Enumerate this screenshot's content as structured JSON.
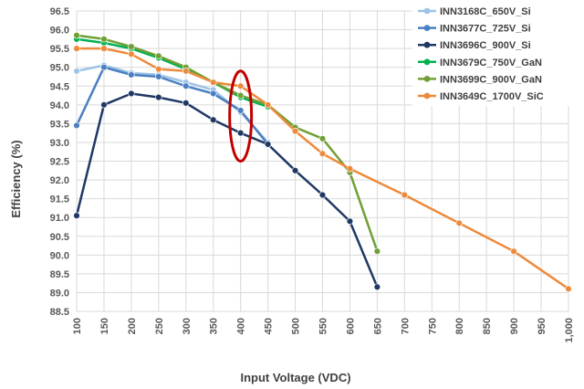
{
  "chart_data": {
    "type": "line",
    "xlabel": "Input Voltage (VDC)",
    "ylabel": "Efficiency (%)",
    "xlim": [
      100,
      1000
    ],
    "ylim": [
      88.5,
      96.5
    ],
    "x_ticks": [
      "100",
      "150",
      "200",
      "250",
      "300",
      "350",
      "400",
      "450",
      "500",
      "550",
      "600",
      "650",
      "700",
      "750",
      "800",
      "850",
      "900",
      "950",
      "1,000"
    ],
    "x_tick_values": [
      100,
      150,
      200,
      250,
      300,
      350,
      400,
      450,
      500,
      550,
      600,
      650,
      700,
      750,
      800,
      850,
      900,
      950,
      1000
    ],
    "y_ticks": [
      "96.5",
      "96.0",
      "95.5",
      "95.0",
      "94.5",
      "94.0",
      "93.5",
      "93.0",
      "92.5",
      "92.0",
      "91.5",
      "91.0",
      "90.5",
      "90.0",
      "89.5",
      "89.0",
      "88.5"
    ],
    "y_tick_values": [
      96.5,
      96.0,
      95.5,
      95.0,
      94.5,
      94.0,
      93.5,
      93.0,
      92.5,
      92.0,
      91.5,
      91.0,
      90.5,
      90.0,
      89.5,
      89.0,
      88.5
    ],
    "grid": true,
    "legend_position": "right",
    "series": [
      {
        "name": "INN3168C_650V_Si",
        "color": "#9dc3e6",
        "x": [
          100,
          150,
          200,
          250,
          300,
          350,
          400,
          450
        ],
        "y": [
          94.9,
          95.05,
          94.85,
          94.8,
          94.6,
          94.4,
          93.8,
          93.0
        ]
      },
      {
        "name": "INN3677C_725V_Si",
        "color": "#4a7fc1",
        "x": [
          100,
          150,
          200,
          250,
          300,
          350,
          400,
          450
        ],
        "y": [
          93.45,
          95.0,
          94.8,
          94.75,
          94.5,
          94.3,
          93.85,
          92.95
        ]
      },
      {
        "name": "INN3696C_900V_Si",
        "color": "#1f3864",
        "x": [
          100,
          150,
          200,
          250,
          300,
          350,
          400,
          450,
          500,
          550,
          600,
          650
        ],
        "y": [
          91.05,
          94.0,
          94.3,
          94.2,
          94.05,
          93.6,
          93.25,
          92.95,
          92.25,
          91.6,
          90.9,
          89.15
        ]
      },
      {
        "name": "INN3679C_750V_GaN",
        "color": "#00b050",
        "x": [
          100,
          150,
          200,
          250,
          300,
          350,
          400,
          450
        ],
        "y": [
          95.75,
          95.65,
          95.5,
          95.25,
          94.95,
          94.6,
          94.2,
          93.95
        ]
      },
      {
        "name": "INN3699C_900V_GaN",
        "color": "#70a035",
        "x": [
          100,
          150,
          200,
          250,
          300,
          350,
          400,
          450,
          500,
          550,
          600,
          650
        ],
        "y": [
          95.85,
          95.75,
          95.55,
          95.3,
          95.0,
          94.6,
          94.25,
          94.0,
          93.4,
          93.1,
          92.2,
          90.1
        ]
      },
      {
        "name": "INN3649C_1700V_SiC",
        "color": "#ed8a3c",
        "x": [
          100,
          150,
          200,
          250,
          300,
          350,
          400,
          450,
          500,
          550,
          600,
          700,
          800,
          900,
          1000
        ],
        "y": [
          95.5,
          95.5,
          95.35,
          94.95,
          94.9,
          94.6,
          94.5,
          94.0,
          93.3,
          92.7,
          92.3,
          91.6,
          90.85,
          90.1,
          89.1
        ]
      }
    ],
    "annotation": {
      "type": "ellipse",
      "color": "#c00000",
      "x": 400,
      "y_min": 92.5,
      "y_max": 94.9
    }
  }
}
